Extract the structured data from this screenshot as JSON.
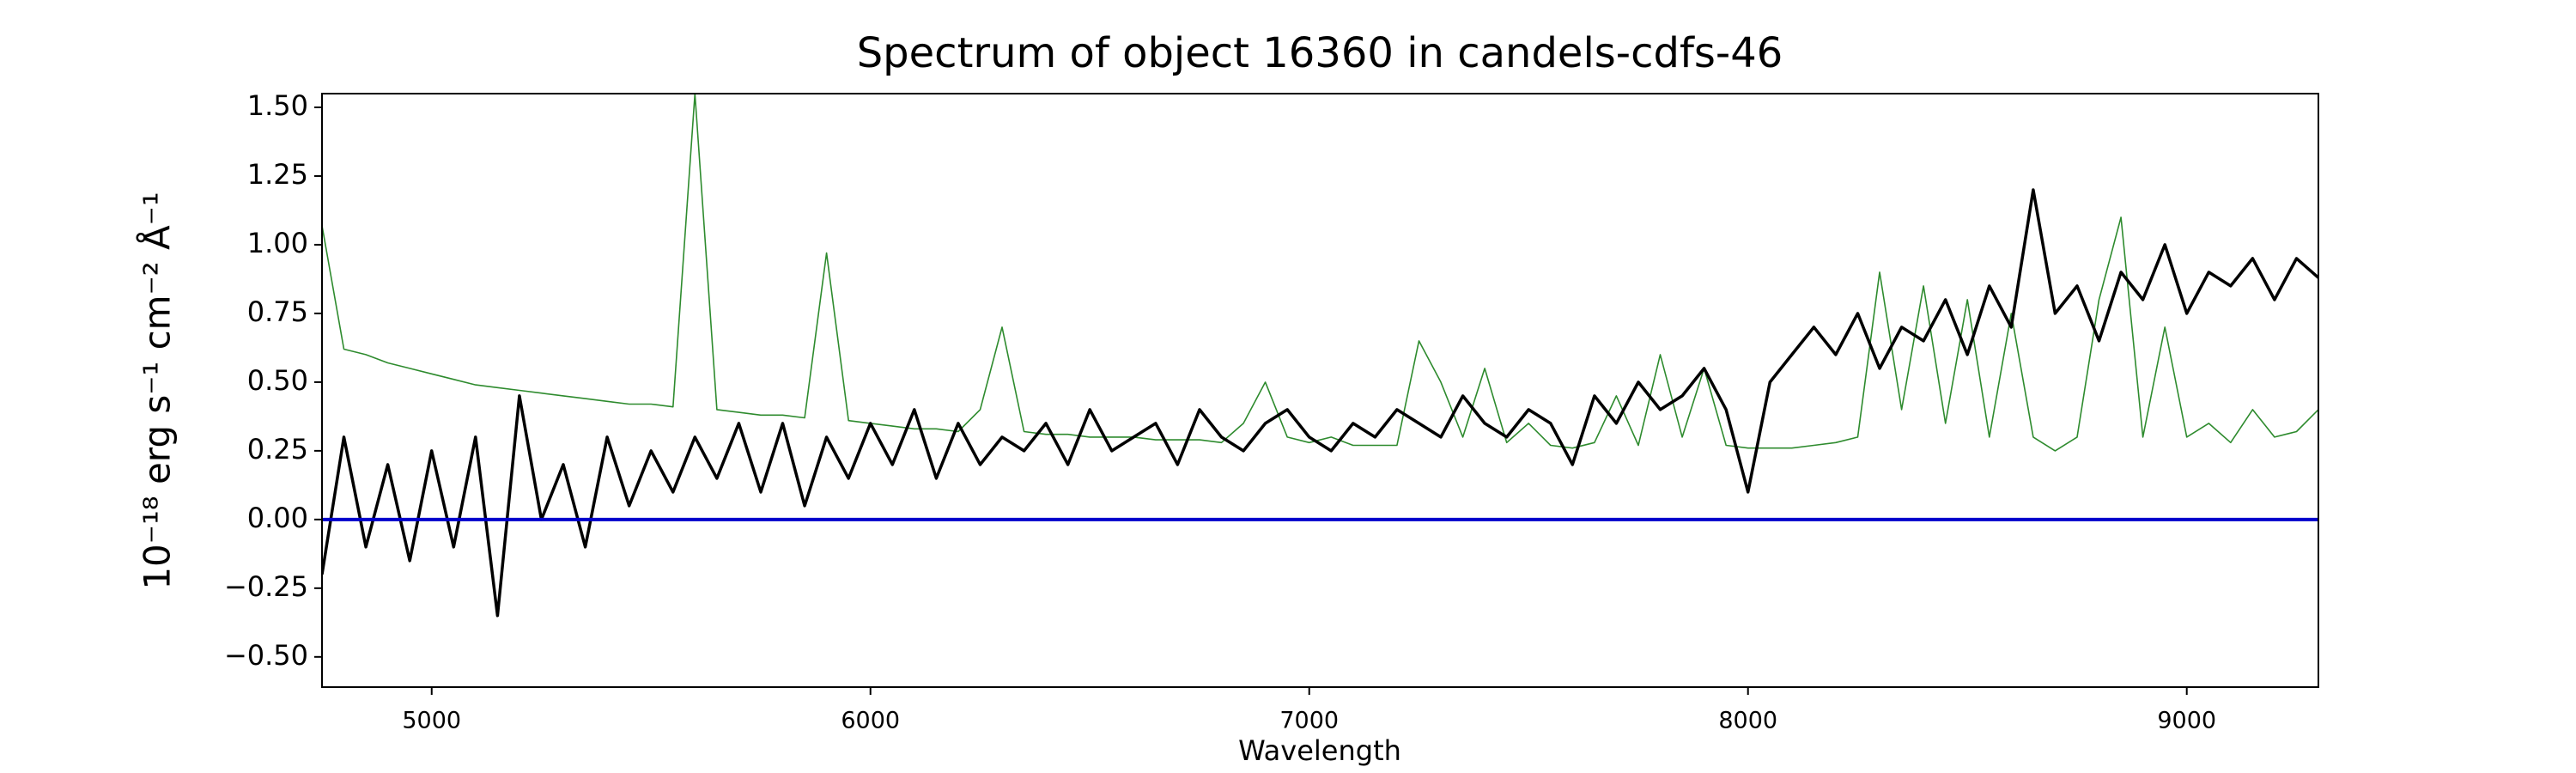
{
  "chart_data": {
    "type": "line",
    "title": "Spectrum of object 16360 in candels-cdfs-46",
    "x_label": "Wavelength",
    "y_label": "10⁻¹⁸ erg s⁻¹ cm⁻² Å⁻¹",
    "x": [
      4750,
      4800,
      4850,
      4900,
      4950,
      5000,
      5050,
      5100,
      5150,
      5200,
      5250,
      5300,
      5350,
      5400,
      5450,
      5500,
      5550,
      5600,
      5650,
      5700,
      5750,
      5800,
      5850,
      5900,
      5950,
      6000,
      6050,
      6100,
      6150,
      6200,
      6250,
      6300,
      6350,
      6400,
      6450,
      6500,
      6550,
      6600,
      6650,
      6700,
      6750,
      6800,
      6850,
      6900,
      6950,
      7000,
      7050,
      7100,
      7150,
      7200,
      7250,
      7300,
      7350,
      7400,
      7450,
      7500,
      7550,
      7600,
      7650,
      7700,
      7750,
      7800,
      7850,
      7900,
      7950,
      8000,
      8050,
      8100,
      8150,
      8200,
      8250,
      8300,
      8350,
      8400,
      8450,
      8500,
      8550,
      8600,
      8650,
      8700,
      8750,
      8800,
      8850,
      8900,
      8950,
      9000,
      9050,
      9100,
      9150,
      9200,
      9250,
      9300
    ],
    "series": [
      {
        "color": "#2e8b2e",
        "values": [
          1.07,
          0.62,
          0.6,
          0.57,
          0.55,
          0.53,
          0.51,
          0.49,
          0.48,
          0.47,
          0.46,
          0.45,
          0.44,
          0.43,
          0.42,
          0.42,
          0.41,
          1.55,
          0.4,
          0.39,
          0.38,
          0.38,
          0.37,
          0.97,
          0.36,
          0.35,
          0.34,
          0.33,
          0.33,
          0.32,
          0.4,
          0.7,
          0.32,
          0.31,
          0.31,
          0.3,
          0.3,
          0.3,
          0.29,
          0.29,
          0.29,
          0.28,
          0.35,
          0.5,
          0.3,
          0.28,
          0.3,
          0.27,
          0.27,
          0.27,
          0.65,
          0.5,
          0.3,
          0.55,
          0.28,
          0.35,
          0.27,
          0.26,
          0.28,
          0.45,
          0.27,
          0.6,
          0.3,
          0.55,
          0.27,
          0.26,
          0.26,
          0.26,
          0.27,
          0.28,
          0.3,
          0.9,
          0.4,
          0.85,
          0.35,
          0.8,
          0.3,
          0.75,
          0.3,
          0.25,
          0.3,
          0.8,
          1.1,
          0.3,
          0.7,
          0.3,
          0.35,
          0.28,
          0.4,
          0.3,
          0.32,
          0.4
        ]
      },
      {
        "color": "#000000",
        "values": [
          -0.2,
          0.3,
          -0.1,
          0.2,
          -0.15,
          0.25,
          -0.1,
          0.3,
          -0.35,
          0.45,
          0.0,
          0.2,
          -0.1,
          0.3,
          0.05,
          0.25,
          0.1,
          0.3,
          0.15,
          0.35,
          0.1,
          0.35,
          0.05,
          0.3,
          0.15,
          0.35,
          0.2,
          0.4,
          0.15,
          0.35,
          0.2,
          0.3,
          0.25,
          0.35,
          0.2,
          0.4,
          0.25,
          0.3,
          0.35,
          0.2,
          0.4,
          0.3,
          0.25,
          0.35,
          0.4,
          0.3,
          0.25,
          0.35,
          0.3,
          0.4,
          0.35,
          0.3,
          0.45,
          0.35,
          0.3,
          0.4,
          0.35,
          0.2,
          0.45,
          0.35,
          0.5,
          0.4,
          0.45,
          0.55,
          0.4,
          0.1,
          0.5,
          0.6,
          0.7,
          0.6,
          0.75,
          0.55,
          0.7,
          0.65,
          0.8,
          0.6,
          0.85,
          0.7,
          1.2,
          0.75,
          0.85,
          0.65,
          0.9,
          0.8,
          1.0,
          0.75,
          0.9,
          0.85,
          0.95,
          0.8,
          0.95,
          0.88
        ]
      }
    ],
    "hline": 0,
    "hline_color": "#0000cc",
    "xlim": [
      4750,
      9300
    ],
    "xticks": [
      5000,
      6000,
      7000,
      8000,
      9000
    ],
    "ylim": [
      -0.61,
      1.55
    ],
    "yticks": [
      {
        "value": -0.5,
        "label": "−0.50"
      },
      {
        "value": -0.25,
        "label": "−0.25"
      },
      {
        "value": 0,
        "label": "0.00"
      },
      {
        "value": 0.25,
        "label": "0.25"
      },
      {
        "value": 0.5,
        "label": "0.50"
      },
      {
        "value": 0.75,
        "label": "0.75"
      },
      {
        "value": 1.0,
        "label": "1.00"
      },
      {
        "value": 1.25,
        "label": "1.25"
      },
      {
        "value": 1.5,
        "label": "1.50"
      }
    ]
  }
}
